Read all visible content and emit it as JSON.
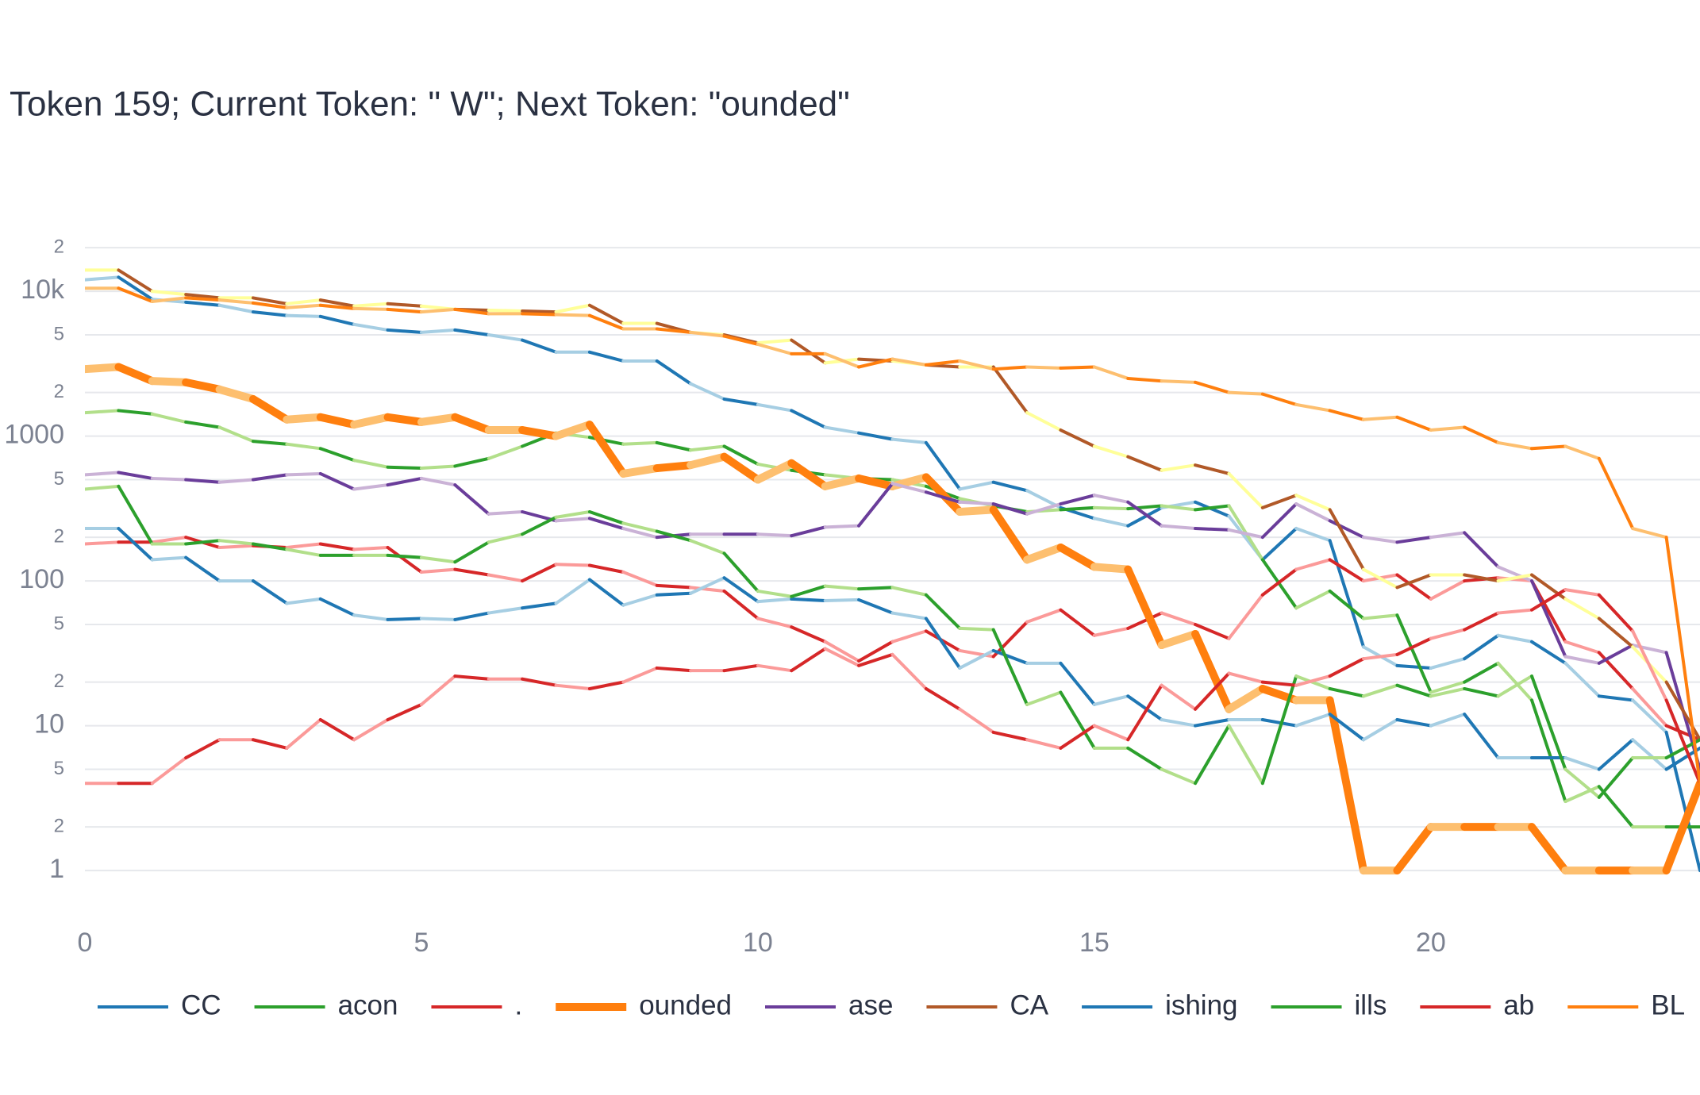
{
  "chart_data": {
    "type": "line",
    "title": "Token 159; Current Token: \" W\"; Next Token: \"ounded\"",
    "x": [
      0,
      0.5,
      1,
      1.5,
      2,
      2.5,
      3,
      3.5,
      4,
      4.5,
      5,
      5.5,
      6,
      6.5,
      7,
      7.5,
      8,
      8.5,
      9,
      9.5,
      10,
      10.5,
      11,
      11.5,
      12,
      12.5,
      13,
      13.5,
      14,
      14.5,
      15,
      15.5,
      16,
      16.5,
      17,
      17.5,
      18,
      18.5,
      19,
      19.5,
      20,
      20.5,
      21,
      21.5,
      22,
      22.5,
      23,
      23.5,
      24
    ],
    "xlim": [
      0,
      24
    ],
    "xticks": [
      0,
      5,
      10,
      15,
      20
    ],
    "ylim": [
      0.5,
      30000
    ],
    "log_y": true,
    "grid": true,
    "yticks": [
      1,
      {
        "value": 2,
        "label": "2"
      },
      5,
      10,
      {
        "value": 20,
        "label": "2"
      },
      {
        "value": 50,
        "label": "5"
      },
      100,
      {
        "value": 200,
        "label": "2"
      },
      {
        "value": 500,
        "label": "5"
      },
      1000,
      {
        "value": 2000,
        "label": "2"
      },
      {
        "value": 5000,
        "label": "5"
      },
      {
        "value": 10000,
        "label": "10k"
      },
      {
        "value": 20000,
        "label": "2"
      }
    ],
    "legend": "bottom",
    "series": [
      {
        "name": "CC",
        "color": "#1f77b4",
        "alt_color": "#a6cee3",
        "line_width": 4,
        "values": [
          12000,
          12500,
          8800,
          8400,
          8000,
          7200,
          6800,
          6700,
          5900,
          5400,
          5200,
          5400,
          5000,
          4600,
          3800,
          3800,
          3300,
          3300,
          2300,
          1800,
          1650,
          1500,
          1150,
          1050,
          950,
          900,
          430,
          480,
          420,
          320,
          270,
          240,
          320,
          350,
          280,
          140,
          230,
          190,
          35,
          26,
          25,
          29,
          42,
          38,
          27,
          16,
          15,
          9,
          1
        ]
      },
      {
        "name": "acon",
        "color": "#2ca02c",
        "alt_color": "#b2df8a",
        "line_width": 4,
        "values": [
          1450,
          1500,
          1420,
          1250,
          1150,
          920,
          880,
          820,
          680,
          610,
          600,
          620,
          700,
          850,
          1050,
          980,
          880,
          900,
          800,
          850,
          640,
          580,
          540,
          510,
          500,
          450,
          370,
          330,
          300,
          310,
          320,
          315,
          330,
          310,
          330,
          140,
          65,
          85,
          55,
          58,
          17,
          20,
          27,
          15,
          3,
          3.8,
          2,
          2,
          2
        ]
      },
      {
        "name": ".",
        "color": "#d62728",
        "alt_color": "#fb9a99",
        "line_width": 4,
        "values": [
          180,
          185,
          185,
          200,
          170,
          175,
          170,
          180,
          165,
          170,
          115,
          120,
          110,
          100,
          130,
          128,
          115,
          93,
          90,
          85,
          55,
          48,
          38,
          28,
          38,
          45,
          33,
          30,
          52,
          63,
          42,
          47,
          60,
          50,
          40,
          80,
          120,
          140,
          100,
          110,
          75,
          100,
          105,
          100,
          38,
          32,
          18,
          10,
          8
        ]
      },
      {
        "name": "ounded",
        "color": "#ff7f0e",
        "alt_color": "#fdbf6f",
        "line_width": 10,
        "values": [
          2900,
          3000,
          2400,
          2350,
          2100,
          1800,
          1300,
          1350,
          1200,
          1350,
          1250,
          1350,
          1100,
          1100,
          1000,
          1200,
          550,
          600,
          630,
          720,
          500,
          650,
          450,
          510,
          450,
          520,
          300,
          310,
          140,
          170,
          125,
          120,
          36,
          43,
          13,
          18,
          15,
          15,
          1,
          1,
          2,
          2,
          2,
          2,
          1,
          1,
          1,
          1,
          4
        ]
      },
      {
        "name": "ase",
        "color": "#6a3d9a",
        "alt_color": "#cab2d6",
        "line_width": 4,
        "values": [
          540,
          560,
          510,
          500,
          480,
          500,
          540,
          550,
          430,
          460,
          510,
          460,
          290,
          300,
          260,
          270,
          230,
          200,
          210,
          210,
          210,
          205,
          235,
          240,
          470,
          410,
          350,
          340,
          290,
          340,
          390,
          350,
          240,
          230,
          225,
          200,
          340,
          260,
          200,
          185,
          200,
          215,
          125,
          100,
          30,
          27,
          36,
          32,
          5
        ]
      },
      {
        "name": "CA",
        "color": "#b15928",
        "alt_color": "#ffff99",
        "line_width": 4,
        "values": [
          14000,
          14000,
          10000,
          9500,
          9000,
          9000,
          8200,
          8700,
          7900,
          8200,
          7900,
          7500,
          7400,
          7300,
          7200,
          8000,
          6000,
          6000,
          5200,
          5000,
          4400,
          4600,
          3200,
          3400,
          3300,
          3100,
          3000,
          3000,
          1450,
          1100,
          850,
          720,
          580,
          630,
          550,
          320,
          390,
          310,
          120,
          90,
          110,
          110,
          100,
          110,
          75,
          55,
          35,
          20,
          8
        ]
      },
      {
        "name": "ishing",
        "color": "#1f77b4",
        "alt_color": "#a6cee3",
        "line_width": 4,
        "values": [
          230,
          230,
          140,
          145,
          100,
          100,
          70,
          75,
          58,
          54,
          55,
          54,
          60,
          65,
          70,
          102,
          68,
          80,
          82,
          105,
          72,
          75,
          73,
          74,
          60,
          55,
          25,
          33,
          27,
          27,
          14,
          16,
          11,
          10,
          11,
          11,
          10,
          12,
          8,
          11,
          10,
          12,
          6,
          6,
          6,
          5,
          8,
          5,
          7
        ]
      },
      {
        "name": "ills",
        "color": "#2ca02c",
        "alt_color": "#b2df8a",
        "line_width": 4,
        "values": [
          430,
          450,
          180,
          180,
          190,
          180,
          165,
          150,
          150,
          150,
          145,
          135,
          185,
          210,
          275,
          300,
          250,
          220,
          190,
          155,
          85,
          78,
          92,
          88,
          90,
          80,
          47,
          46,
          14,
          17,
          7,
          7,
          5,
          4,
          10,
          4,
          22,
          18,
          16,
          19,
          16,
          18,
          16,
          22,
          5,
          3.2,
          6,
          6,
          8
        ]
      },
      {
        "name": "ab",
        "color": "#d62728",
        "alt_color": "#fb9a99",
        "line_width": 4,
        "values": [
          4,
          4,
          4,
          6,
          8,
          8,
          7,
          11,
          8,
          11,
          14,
          22,
          21,
          21,
          19,
          18,
          20,
          25,
          24,
          24,
          26,
          24,
          34,
          26,
          31,
          18,
          13,
          9,
          8,
          7,
          10,
          8,
          19,
          13,
          23,
          20,
          19,
          22,
          29,
          31,
          40,
          46,
          60,
          63,
          87,
          80,
          45,
          15,
          4
        ]
      },
      {
        "name": "BL",
        "color": "#ff7f0e",
        "alt_color": "#fdbf6f",
        "line_width": 4,
        "values": [
          10500,
          10500,
          8500,
          9000,
          8700,
          8300,
          7700,
          8000,
          7600,
          7500,
          7200,
          7500,
          7000,
          7000,
          6900,
          6800,
          5500,
          5500,
          5200,
          4900,
          4300,
          3700,
          3700,
          3000,
          3400,
          3100,
          3300,
          2900,
          3000,
          2950,
          3000,
          2500,
          2400,
          2350,
          2000,
          1950,
          1650,
          1500,
          1300,
          1350,
          1100,
          1150,
          900,
          820,
          850,
          700,
          230,
          200,
          4
        ]
      }
    ]
  }
}
